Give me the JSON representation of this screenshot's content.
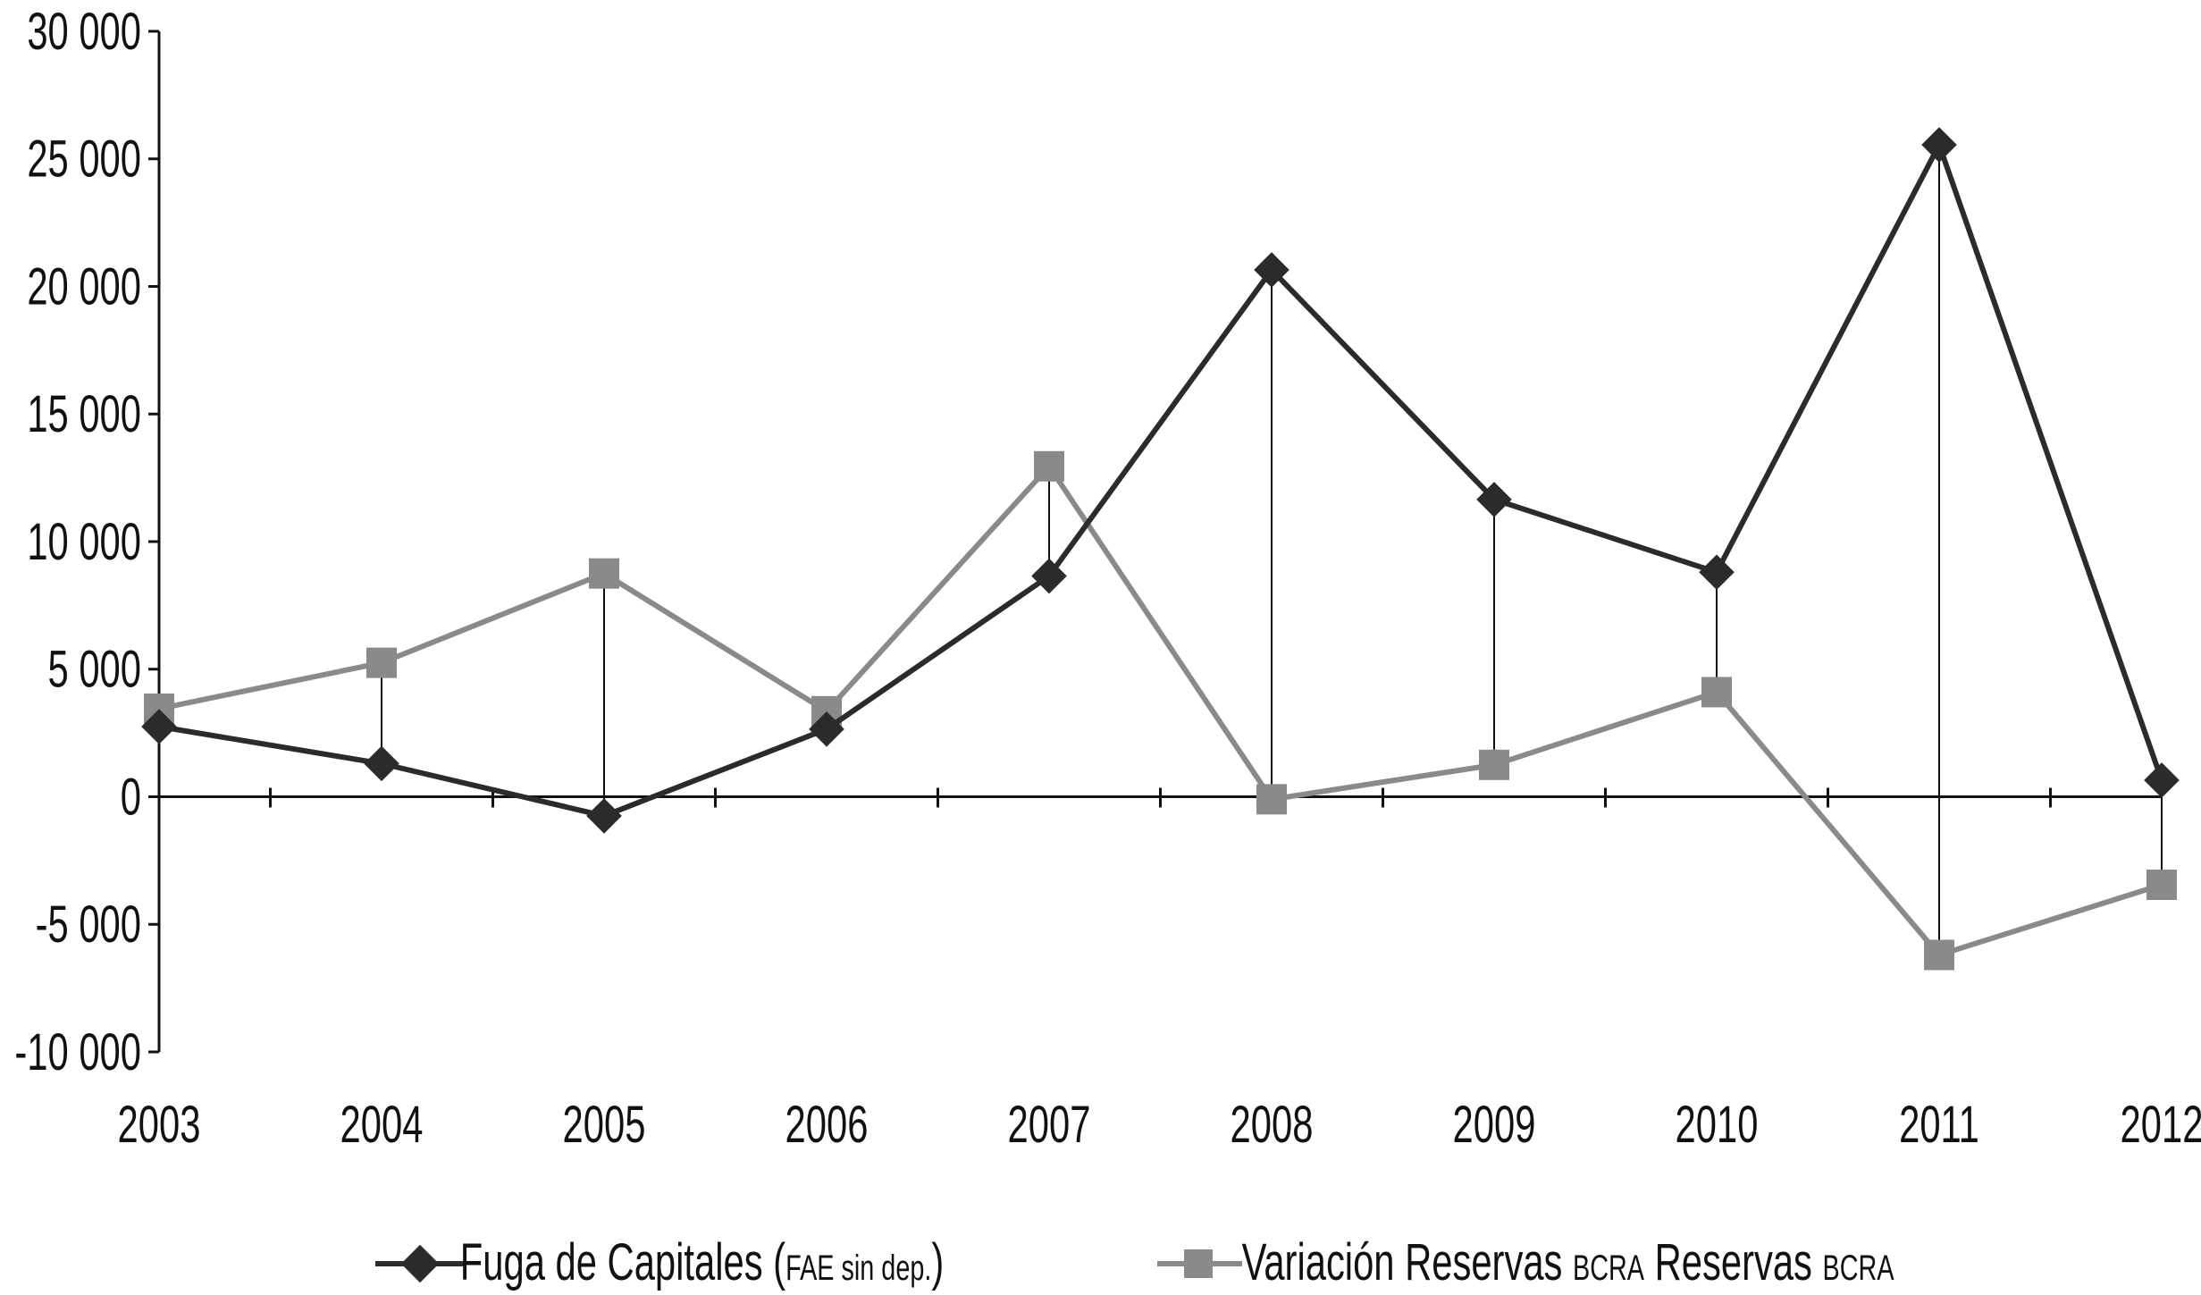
{
  "chart_data": {
    "type": "line",
    "title": "",
    "xlabel": "",
    "ylabel": "",
    "categories": [
      "2003",
      "2004",
      "2005",
      "2006",
      "2007",
      "2008",
      "2009",
      "2010",
      "2011",
      "2012"
    ],
    "ylim": [
      -10000,
      30000
    ],
    "yticks": [
      -10000,
      -5000,
      0,
      5000,
      10000,
      15000,
      20000,
      25000,
      30000
    ],
    "ytick_labels": [
      "-10 000",
      "-5 000",
      "0",
      "5 000",
      "10 000",
      "15 000",
      "20 000",
      "25 000",
      "30 000"
    ],
    "grid": false,
    "high_low_lines": true,
    "legend_position": "bottom",
    "series": [
      {
        "name": "Fuga de Capitales",
        "name_small": "(FAE sin dep.)",
        "marker": "diamond",
        "color": "#2b2b2b",
        "values": [
          2750,
          1300,
          -750,
          2650,
          8650,
          20650,
          11650,
          8800,
          25550,
          650
        ]
      },
      {
        "name": "Variación Reservas BCRA Reservas BCRA",
        "marker": "square",
        "color": "#8a8a8a",
        "values": [
          3450,
          5250,
          8750,
          3350,
          12950,
          -100,
          1250,
          4100,
          -6200,
          -3450
        ]
      }
    ],
    "legend": [
      {
        "label_main": "Fuga de Capitales ",
        "label_small": "FAE sin dep.",
        "label_open": "(",
        "label_close": ")"
      },
      {
        "label_main1": "Variación Reservas ",
        "label_small1": "BCRA",
        "label_main2": " Reservas ",
        "label_small2": "BCRA"
      }
    ]
  }
}
